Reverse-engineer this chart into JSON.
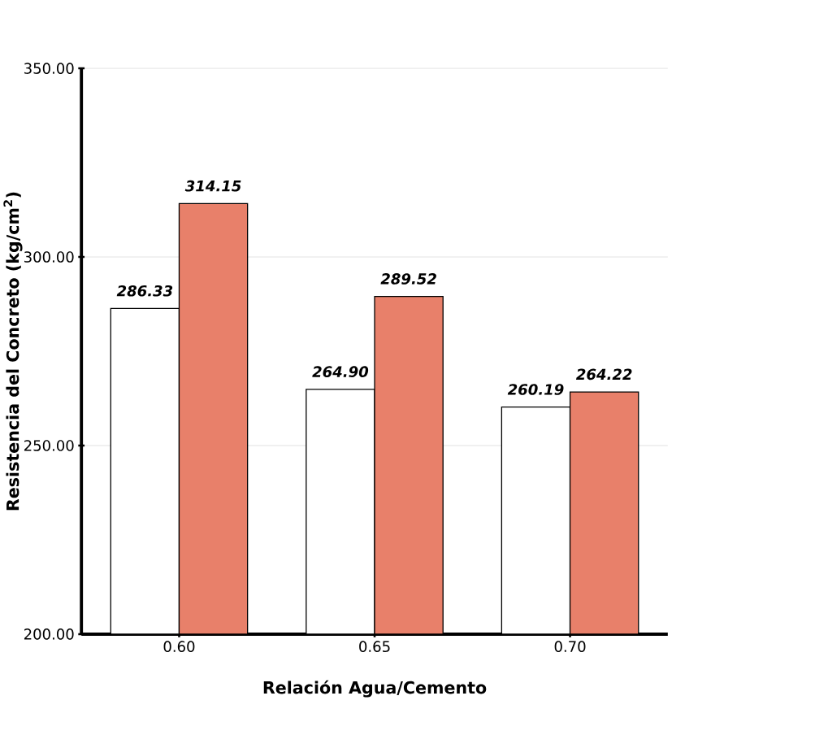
{
  "chart_data": {
    "type": "bar",
    "xlabel": "Relación Agua/Cemento",
    "ylabel": "Resistencia del Concreto (kg/cm$^{2}$)",
    "categories": [
      "0.60",
      "0.65",
      "0.70"
    ],
    "series": [
      {
        "color": "#ffffff",
        "values": [
          286.33,
          264.9,
          260.19
        ],
        "value_labels": [
          "286.33",
          "264.90",
          "260.19"
        ]
      },
      {
        "color": "#e8806a",
        "values": [
          314.15,
          289.52,
          264.22
        ],
        "value_labels": [
          "314.15",
          "289.52",
          "264.22"
        ]
      }
    ],
    "ylim": [
      200,
      350
    ],
    "yticks": [
      {
        "value": 200,
        "label": "200.00"
      },
      {
        "value": 250,
        "label": "250.00"
      },
      {
        "value": 300,
        "label": "300.00"
      },
      {
        "value": 350,
        "label": "350.00"
      }
    ],
    "grid": "y"
  }
}
